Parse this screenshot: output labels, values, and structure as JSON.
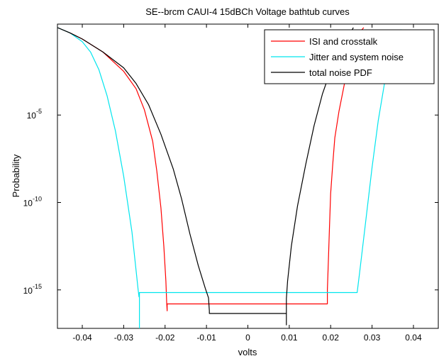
{
  "chart_data": {
    "type": "line",
    "title": "SE--brcm CAUI-4 15dBCh Voltage bathtub curves",
    "xlabel": "volts",
    "ylabel": "Probability",
    "xlim": [
      -0.046,
      0.046
    ],
    "ylim_log10": [
      -17.2,
      0.2
    ],
    "y_scale": "log",
    "grid": false,
    "legend_position": "top-right",
    "x_ticks": [
      {
        "value": -0.04,
        "label": "-0.04"
      },
      {
        "value": -0.03,
        "label": "-0.03"
      },
      {
        "value": -0.02,
        "label": "-0.02"
      },
      {
        "value": -0.01,
        "label": "-0.01"
      },
      {
        "value": 0,
        "label": "0"
      },
      {
        "value": 0.01,
        "label": "0.01"
      },
      {
        "value": 0.02,
        "label": "0.02"
      },
      {
        "value": 0.03,
        "label": "0.03"
      },
      {
        "value": 0.04,
        "label": "0.04"
      }
    ],
    "y_ticks": [
      {
        "value_log10": -5,
        "base": "10",
        "exp": "-5"
      },
      {
        "value_log10": -10,
        "base": "10",
        "exp": "-10"
      },
      {
        "value_log10": -15,
        "base": "10",
        "exp": "-15"
      }
    ],
    "series": [
      {
        "name": "ISI and crosstalk",
        "color": "#ff0000",
        "points_log10": [
          [
            -0.046,
            0.0
          ],
          [
            -0.043,
            -0.3
          ],
          [
            -0.04,
            -0.65
          ],
          [
            -0.035,
            -1.4
          ],
          [
            -0.03,
            -2.5
          ],
          [
            -0.027,
            -3.5
          ],
          [
            -0.025,
            -4.7
          ],
          [
            -0.023,
            -6.5
          ],
          [
            -0.022,
            -8.2
          ],
          [
            -0.021,
            -10.3
          ],
          [
            -0.0203,
            -12.5
          ],
          [
            -0.0198,
            -14.5
          ],
          [
            -0.0196,
            -15.8
          ],
          [
            -0.0195,
            -16.2
          ],
          [
            -0.0195,
            -15.8
          ],
          [
            0.0192,
            -15.8
          ],
          [
            0.0192,
            -15.0
          ],
          [
            0.0195,
            -13.0
          ],
          [
            0.0197,
            -11.5
          ],
          [
            0.02,
            -9.5
          ],
          [
            0.0205,
            -7.8
          ],
          [
            0.021,
            -6.3
          ],
          [
            0.022,
            -4.8
          ],
          [
            0.0235,
            -3.0
          ],
          [
            0.025,
            -1.5
          ],
          [
            0.0265,
            -0.4
          ],
          [
            0.028,
            0.0
          ]
        ]
      },
      {
        "name": "Jitter and system noise",
        "color": "#00e5ee",
        "points_log10": [
          [
            -0.046,
            0.0
          ],
          [
            -0.043,
            -0.3
          ],
          [
            -0.04,
            -0.8
          ],
          [
            -0.038,
            -1.4
          ],
          [
            -0.036,
            -2.4
          ],
          [
            -0.034,
            -3.9
          ],
          [
            -0.032,
            -5.9
          ],
          [
            -0.03,
            -8.5
          ],
          [
            -0.028,
            -11.7
          ],
          [
            -0.027,
            -13.9
          ],
          [
            -0.0265,
            -15.0
          ],
          [
            -0.0263,
            -15.4
          ],
          [
            -0.0262,
            -15.15
          ],
          [
            -0.0262,
            -17.2
          ],
          [
            -0.0262,
            -15.15
          ],
          [
            0.0264,
            -15.15
          ],
          [
            0.027,
            -14.0
          ],
          [
            0.0285,
            -11.0
          ],
          [
            0.03,
            -8.0
          ],
          [
            0.0315,
            -5.3
          ],
          [
            0.033,
            -3.2
          ],
          [
            0.035,
            -1.3
          ],
          [
            0.037,
            -0.1
          ]
        ]
      },
      {
        "name": "total noise PDF",
        "color": "#000000",
        "points_log10": [
          [
            -0.046,
            0.0
          ],
          [
            -0.043,
            -0.3
          ],
          [
            -0.04,
            -0.65
          ],
          [
            -0.035,
            -1.4
          ],
          [
            -0.03,
            -2.3
          ],
          [
            -0.027,
            -3.2
          ],
          [
            -0.024,
            -4.4
          ],
          [
            -0.021,
            -6.1
          ],
          [
            -0.018,
            -8.1
          ],
          [
            -0.016,
            -9.8
          ],
          [
            -0.014,
            -11.8
          ],
          [
            -0.012,
            -13.6
          ],
          [
            -0.0103,
            -14.9
          ],
          [
            -0.0095,
            -15.45
          ],
          [
            -0.0093,
            -16.2
          ],
          [
            -0.0093,
            -16.35
          ],
          [
            0.0093,
            -16.35
          ],
          [
            0.0093,
            -17.0
          ],
          [
            0.0093,
            -15.5
          ],
          [
            0.0096,
            -14.5
          ],
          [
            0.0105,
            -12.5
          ],
          [
            0.012,
            -10.2
          ],
          [
            0.014,
            -7.8
          ],
          [
            0.016,
            -5.6
          ],
          [
            0.018,
            -3.8
          ],
          [
            0.0205,
            -2.1
          ],
          [
            0.0235,
            -0.8
          ],
          [
            0.0255,
            0.0
          ]
        ]
      }
    ]
  }
}
